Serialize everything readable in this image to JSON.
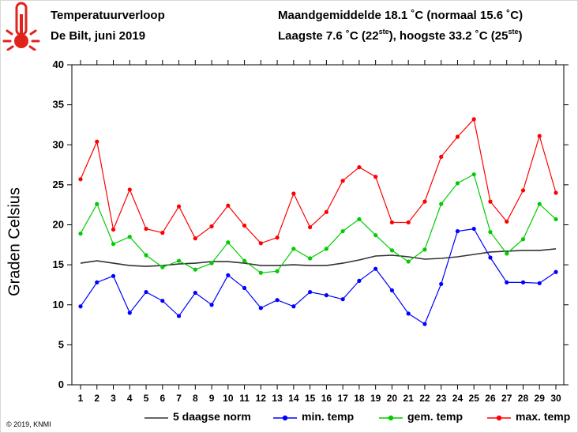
{
  "header": {
    "title": "Temperatuurverloop",
    "subtitle": "De Bilt, juni 2019",
    "monthly_avg": "Maandgemiddelde 18.1 ˚C (normaal 15.6 ˚C)",
    "low_high_prefix": "Laagste 7.6 ˚C (22",
    "low_sup": "ste",
    "low_high_middle": "), hoogste 33.2 ˚C (25",
    "high_sup": "ste",
    "low_high_suffix": ")"
  },
  "icon": "thermometer-icon",
  "copyright": "© 2019, KNMI",
  "chart_data": {
    "type": "line",
    "x": [
      1,
      2,
      3,
      4,
      5,
      6,
      7,
      8,
      9,
      10,
      11,
      12,
      13,
      14,
      15,
      16,
      17,
      18,
      19,
      20,
      21,
      22,
      23,
      24,
      25,
      26,
      27,
      28,
      29,
      30
    ],
    "x_tick_labels": [
      "1",
      "2",
      "3",
      "4",
      "5",
      "6",
      "7",
      "8",
      "9",
      "10",
      "11",
      "12",
      "13",
      "14",
      "15",
      "16",
      "17",
      "18",
      "19",
      "20",
      "21",
      "22",
      "23",
      "24",
      "25",
      "26",
      "27",
      "28",
      "29",
      "30"
    ],
    "ylabel": "Graden Celsius",
    "ylim": [
      0,
      40
    ],
    "y_ticks": [
      0,
      5,
      10,
      15,
      20,
      25,
      30,
      35,
      40
    ],
    "grid": false,
    "legend_position": "bottom",
    "series": [
      {
        "name": "5 daagse norm",
        "color": "#333333",
        "markers": false,
        "values": [
          15.2,
          15.5,
          15.2,
          14.9,
          14.8,
          14.9,
          15.1,
          15.2,
          15.4,
          15.4,
          15.2,
          14.9,
          14.9,
          15.0,
          14.9,
          14.9,
          15.2,
          15.6,
          16.1,
          16.2,
          16.0,
          15.7,
          15.8,
          16.0,
          16.3,
          16.6,
          16.7,
          16.8,
          16.8,
          17.0
        ]
      },
      {
        "name": "min. temp",
        "color": "#0000ff",
        "markers": true,
        "values": [
          9.8,
          12.8,
          13.6,
          9.0,
          11.6,
          10.5,
          8.6,
          11.5,
          10.0,
          13.7,
          12.1,
          9.6,
          10.6,
          9.8,
          11.6,
          11.2,
          10.7,
          13.0,
          14.5,
          11.8,
          8.9,
          7.6,
          12.6,
          19.2,
          19.5,
          15.9,
          12.8,
          12.8,
          12.7,
          14.1
        ]
      },
      {
        "name": "gem. temp",
        "color": "#00cc00",
        "markers": true,
        "values": [
          18.9,
          22.6,
          17.6,
          18.5,
          16.2,
          14.7,
          15.5,
          14.4,
          15.2,
          17.8,
          15.5,
          14.0,
          14.2,
          17.0,
          15.8,
          17.0,
          19.2,
          20.7,
          18.7,
          16.8,
          15.4,
          16.9,
          22.6,
          25.2,
          26.3,
          19.1,
          16.4,
          18.2,
          22.6,
          20.7
        ]
      },
      {
        "name": "max. temp",
        "color": "#ff0000",
        "markers": true,
        "values": [
          25.7,
          30.4,
          19.4,
          24.4,
          19.5,
          19.0,
          22.3,
          18.3,
          19.8,
          22.4,
          19.9,
          17.7,
          18.4,
          23.9,
          19.7,
          21.6,
          25.5,
          27.2,
          26.0,
          20.3,
          20.3,
          22.9,
          28.5,
          31.0,
          33.2,
          22.9,
          20.4,
          24.3,
          31.1,
          24.0
        ]
      }
    ]
  }
}
